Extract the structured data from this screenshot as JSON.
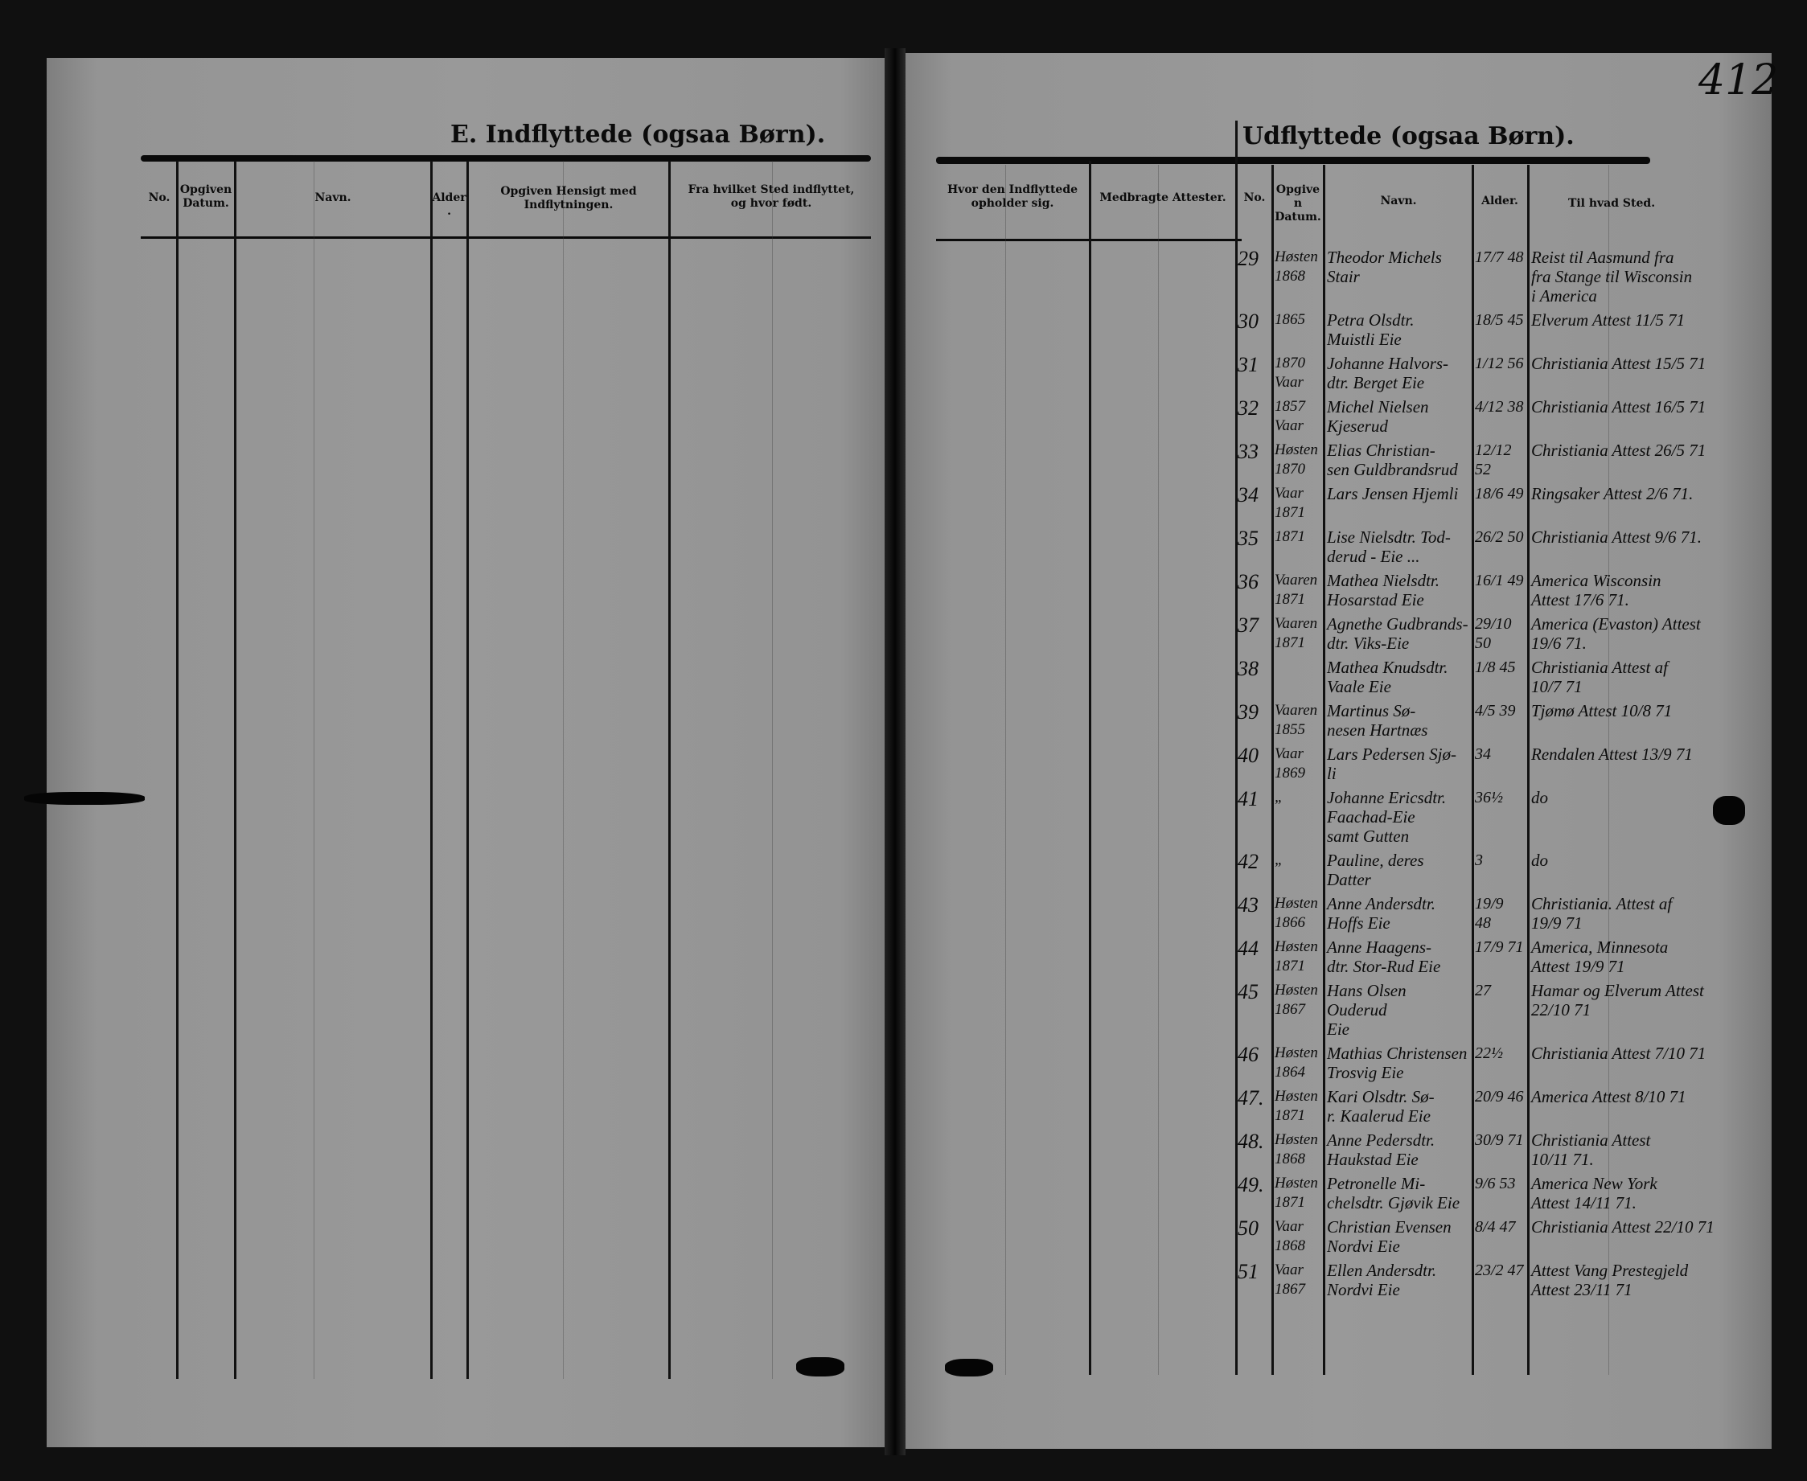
{
  "page_number": "412",
  "left_page": {
    "title": "E. Indflyttede (ogsaa Børn).",
    "headers": [
      "No.",
      "Opgiven Datum.",
      "Navn.",
      "Alder.",
      "Opgiven Hensigt med Indflytningen.",
      "Fra hvilket Sted indflyttet,\nog hvor født."
    ]
  },
  "right_page": {
    "title": "Udflyttede (ogsaa Børn).",
    "headers": [
      "Hvor den Indflyttede\nopholder sig.",
      "Medbragte Attester.",
      "No.",
      "Opgiven\nDatum.",
      "Navn.",
      "Alder.",
      "Til hvad Sted."
    ],
    "entries": [
      {
        "no": "29",
        "date": "Høsten\n1868",
        "name": "Theodor Michels\nStair",
        "age": "17/7 48",
        "dest": "Reist til Aasmund fra\nfra Stange til Wisconsin\ni America"
      },
      {
        "no": "30",
        "date": "1865",
        "name": "Petra Olsdtr.\nMuistli Eie",
        "age": "18/5 45",
        "dest": "Elverum Attest 11/5 71"
      },
      {
        "no": "31",
        "date": "1870\nVaar",
        "name": "Johanne Halvors-\ndtr. Berget Eie",
        "age": "1/12 56",
        "dest": "Christiania Attest 15/5 71"
      },
      {
        "no": "32",
        "date": "1857\nVaar",
        "name": "Michel Nielsen\nKjeserud",
        "age": "4/12 38",
        "dest": "Christiania Attest 16/5 71"
      },
      {
        "no": "33",
        "date": "Høsten\n1870",
        "name": "Elias Christian-\nsen Guldbrandsrud",
        "age": "12/12 52",
        "dest": "Christiania Attest 26/5 71"
      },
      {
        "no": "34",
        "date": "Vaar\n1871",
        "name": "Lars Jensen Hjemli",
        "age": "18/6 49",
        "dest": "Ringsaker Attest 2/6 71."
      },
      {
        "no": "35",
        "date": "1871",
        "name": "Lise Nielsdtr. Tod-\nderud - Eie ...",
        "age": "26/2 50",
        "dest": "Christiania Attest 9/6 71."
      },
      {
        "no": "36",
        "date": "Vaaren\n1871",
        "name": "Mathea Nielsdtr.\nHosarstad Eie",
        "age": "16/1 49",
        "dest": "America Wisconsin\nAttest 17/6 71."
      },
      {
        "no": "37",
        "date": "Vaaren\n1871",
        "name": "Agnethe Gudbrands-\ndtr. Viks-Eie",
        "age": "29/10 50",
        "dest": "America (Evaston) Attest\n19/6 71."
      },
      {
        "no": "38",
        "date": "",
        "name": "Mathea Knudsdtr.\nVaale Eie",
        "age": "1/8 45",
        "dest": "Christiania Attest af\n10/7 71"
      },
      {
        "no": "39",
        "date": "Vaaren\n1855",
        "name": "Martinus Sø-\nnesen Hartnæs",
        "age": "4/5 39",
        "dest": "Tjømø Attest 10/8 71"
      },
      {
        "no": "40",
        "date": "Vaar\n1869",
        "name": "Lars Pedersen Sjø-\nli",
        "age": "34",
        "dest": "Rendalen Attest 13/9 71"
      },
      {
        "no": "41",
        "date": "„",
        "name": "Johanne Ericsdtr.\nFaachad-Eie\nsamt Gutten",
        "age": "36½",
        "dest": "do"
      },
      {
        "no": "42",
        "date": "„",
        "name": "Pauline, deres\nDatter",
        "age": "3",
        "dest": "do"
      },
      {
        "no": "43",
        "date": "Høsten\n1866",
        "name": "Anne Andersdtr.\nHoffs Eie",
        "age": "19/9\n48",
        "dest": "Christiania. Attest af\n19/9 71"
      },
      {
        "no": "44",
        "date": "Høsten\n1871",
        "name": "Anne Haagens-\ndtr. Stor-Rud Eie",
        "age": "17/9 71",
        "dest": "America, Minnesota\nAttest 19/9 71"
      },
      {
        "no": "45",
        "date": "Høsten\n1867",
        "name": "Hans Olsen Ouderud\nEie",
        "age": "27",
        "dest": "Hamar og Elverum Attest\n22/10 71"
      },
      {
        "no": "46",
        "date": "Høsten\n1864",
        "name": "Mathias Christensen\nTrosvig Eie",
        "age": "22½",
        "dest": "Christiania Attest 7/10 71"
      },
      {
        "no": "47.",
        "date": "Høsten\n1871",
        "name": "Kari Olsdtr. Sø-\nr. Kaalerud Eie",
        "age": "20/9 46",
        "dest": "America Attest 8/10 71"
      },
      {
        "no": "48.",
        "date": "Høsten\n1868",
        "name": "Anne Pedersdtr.\nHaukstad Eie",
        "age": "30/9 71",
        "dest": "Christiania Attest\n10/11 71."
      },
      {
        "no": "49.",
        "date": "Høsten\n1871",
        "name": "Petronelle Mi-\nchelsdtr. Gjøvik Eie",
        "age": "9/6 53",
        "dest": "America New York\nAttest 14/11 71."
      },
      {
        "no": "50",
        "date": "Vaar\n1868",
        "name": "Christian Evensen\nNordvi Eie",
        "age": "8/4 47",
        "dest": "Christiania Attest 22/10 71"
      },
      {
        "no": "51",
        "date": "Vaar\n1867",
        "name": "Ellen Andersdtr.\nNordvi Eie",
        "age": "23/2 47",
        "dest": "Attest Vang Prestegjeld\nAttest 23/11 71"
      }
    ]
  }
}
